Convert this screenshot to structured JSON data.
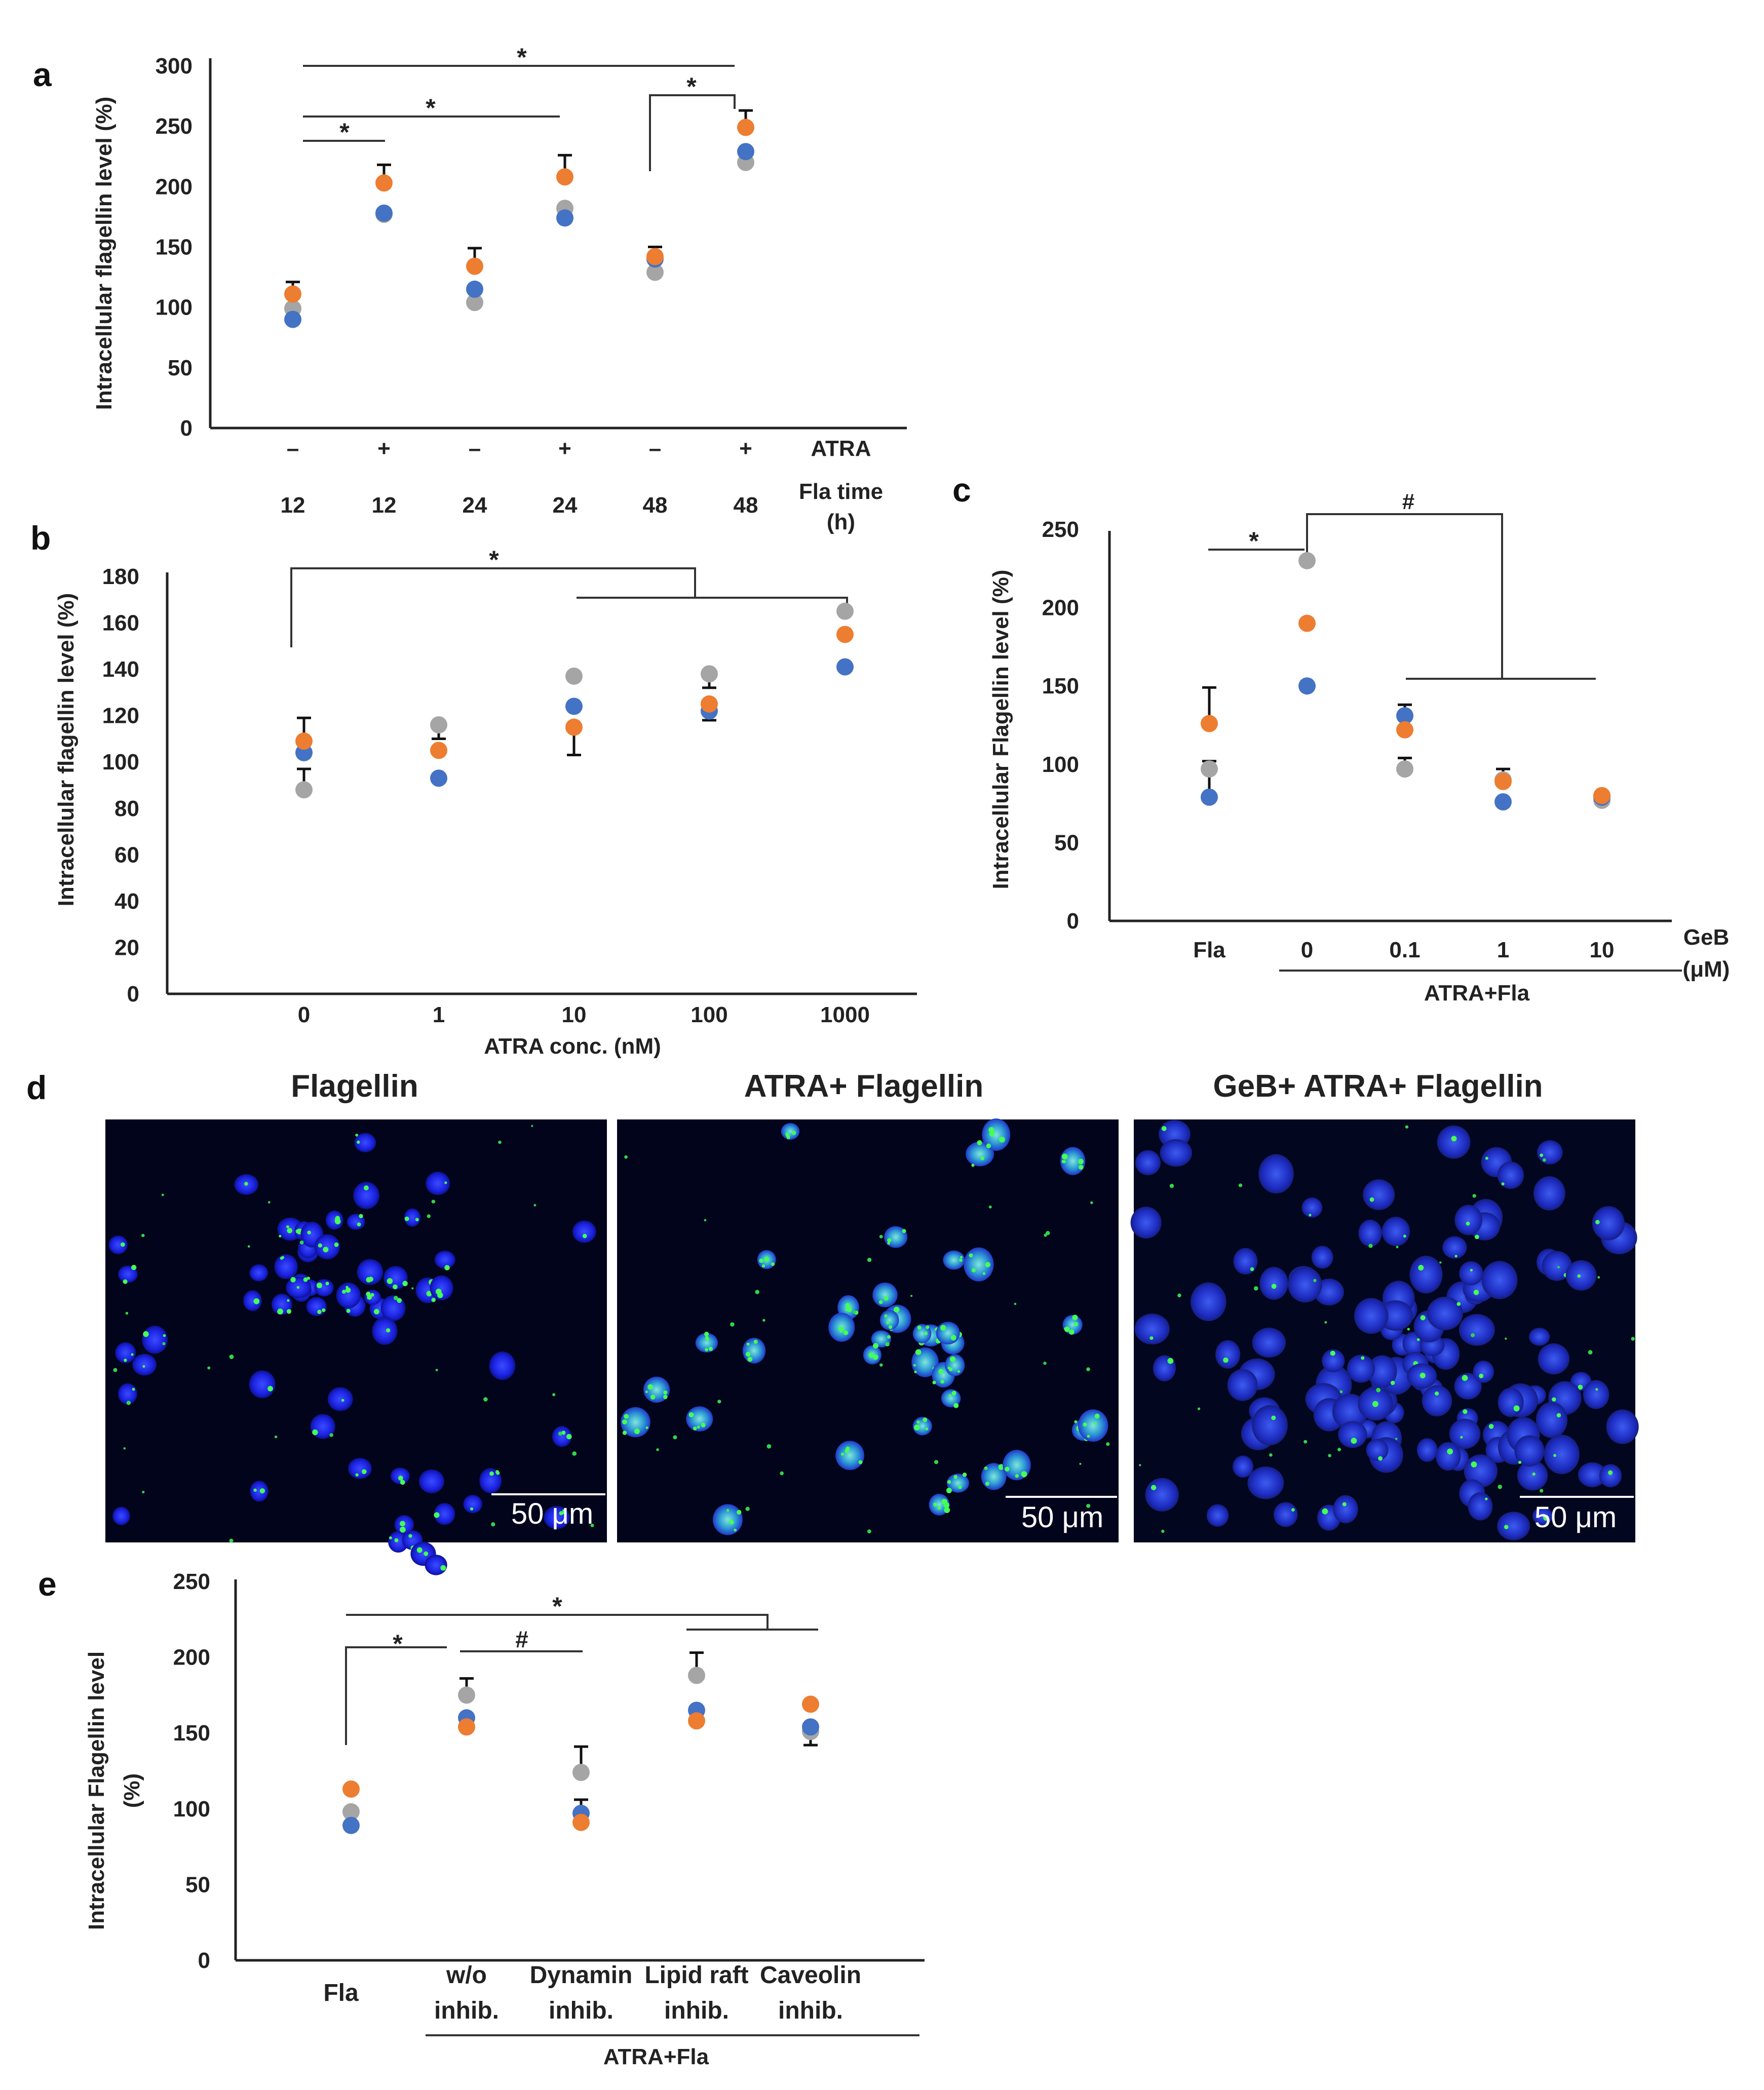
{
  "colors": {
    "blue": "#4472C4",
    "orange": "#ED7D31",
    "gray": "#A5A5A5"
  },
  "chart_data": [
    {
      "panel": "a",
      "type": "scatter",
      "ylabel": "Intracellular flagellin level (%)",
      "ylim": [
        0,
        300
      ],
      "yticks": [
        0,
        50,
        100,
        150,
        200,
        250,
        300
      ],
      "row1_label": "ATRA",
      "row1": [
        "–",
        "+",
        "–",
        "+",
        "–",
        "+"
      ],
      "row2_label1": "Fla time",
      "row2_label2": "(h)",
      "row2": [
        "12",
        "12",
        "24",
        "24",
        "48",
        "48"
      ],
      "series": [
        {
          "name": "blue",
          "values": [
            90,
            178,
            115,
            174,
            140,
            229
          ]
        },
        {
          "name": "orange",
          "values": [
            111,
            203,
            134,
            208,
            142,
            249
          ]
        },
        {
          "name": "gray",
          "values": [
            99,
            177,
            104,
            182,
            129,
            220
          ]
        }
      ],
      "error_top": [
        121,
        218,
        149,
        226,
        150,
        263
      ],
      "annotations": [
        "*",
        "*",
        "*",
        "*"
      ]
    },
    {
      "panel": "b",
      "type": "scatter",
      "ylabel": "Intracellular flagellin level (%)",
      "xlabel": "ATRA conc. (nM)",
      "ylim": [
        0,
        180
      ],
      "yticks": [
        0,
        20,
        40,
        60,
        80,
        100,
        120,
        140,
        160,
        180
      ],
      "categories": [
        "0",
        "1",
        "10",
        "100",
        "1000"
      ],
      "series": [
        {
          "name": "blue",
          "values": [
            104,
            93,
            124,
            122,
            141
          ]
        },
        {
          "name": "orange",
          "values": [
            109,
            105,
            115,
            125,
            155
          ]
        },
        {
          "name": "gray",
          "values": [
            88,
            116,
            137,
            138,
            165
          ]
        }
      ],
      "error_top": [
        119,
        110,
        null,
        132,
        null
      ],
      "error_bottom": [
        97,
        null,
        103,
        118,
        null
      ],
      "annotations": [
        "*"
      ]
    },
    {
      "panel": "c",
      "type": "scatter",
      "ylabel": "Intracellular Flagellin level (%)",
      "ylim": [
        0,
        250
      ],
      "yticks": [
        0,
        50,
        100,
        150,
        200,
        250
      ],
      "categories": [
        "Fla",
        "0",
        "0.1",
        "1",
        "10"
      ],
      "xunit1": "GeB",
      "xunit2": "(μM)",
      "group_label": "ATRA+Fla",
      "series": [
        {
          "name": "blue",
          "values": [
            79,
            150,
            131,
            76,
            79
          ]
        },
        {
          "name": "orange",
          "values": [
            126,
            190,
            122,
            89,
            80
          ]
        },
        {
          "name": "gray",
          "values": [
            97,
            230,
            97,
            90,
            77
          ]
        }
      ],
      "error_top": [
        149,
        null,
        138,
        97,
        null
      ],
      "error_bottom": [
        102,
        null,
        104,
        null,
        null
      ],
      "annotations": [
        "*",
        "#"
      ]
    },
    {
      "panel": "e",
      "type": "scatter",
      "ylabel1": "Intracellular Flagellin level",
      "ylabel2": "(%)",
      "ylim": [
        0,
        250
      ],
      "yticks": [
        0,
        50,
        100,
        150,
        200,
        250
      ],
      "categories": [
        {
          "line1": "Fla",
          "line2": ""
        },
        {
          "line1": "w/o",
          "line2": "inhib."
        },
        {
          "line1": "Dynamin",
          "line2": "inhib."
        },
        {
          "line1": "Lipid raft",
          "line2": "inhib."
        },
        {
          "line1": "Caveolin",
          "line2": "inhib."
        }
      ],
      "group_label": "ATRA+Fla",
      "series": [
        {
          "name": "blue",
          "values": [
            89,
            160,
            97,
            165,
            154
          ]
        },
        {
          "name": "orange",
          "values": [
            113,
            154,
            91,
            158,
            169
          ]
        },
        {
          "name": "gray",
          "values": [
            98,
            175,
            124,
            188,
            151
          ]
        }
      ],
      "error_top": [
        null,
        186,
        141,
        203,
        null
      ],
      "error_bottom": [
        null,
        null,
        106,
        null,
        142
      ],
      "annotations": [
        "*",
        "#",
        "*"
      ]
    }
  ],
  "panel_labels": {
    "a": "a",
    "b": "b",
    "c": "c",
    "d": "d",
    "e": "e"
  },
  "micrographs": {
    "titles": [
      "Flagellin",
      "ATRA+ Flagellin",
      "GeB+ ATRA+ Flagellin"
    ],
    "scale_bar": "50 μm"
  }
}
